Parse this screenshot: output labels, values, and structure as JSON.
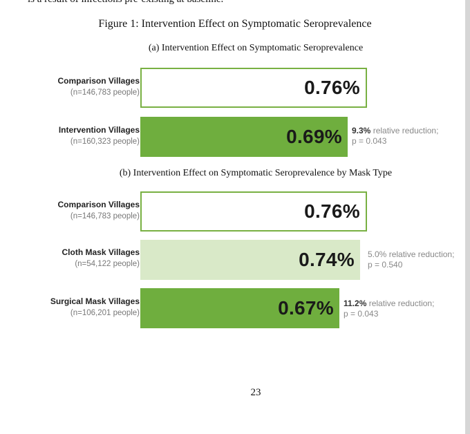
{
  "clipped_text": "is a result of infections pre-existing at baseline.",
  "figure_caption": "Figure 1: Intervention Effect on Symptomatic Seroprevalence",
  "panel_a": {
    "caption": "(a) Intervention Effect on Symptomatic Seroprevalence",
    "rows": [
      {
        "name": "Comparison Villages",
        "n": "(n=146,783 people)",
        "value_label": "0.76%",
        "value": 0.76
      },
      {
        "name": "Intervention Villages",
        "n": "(n=160,323 people)",
        "value_label": "0.69%",
        "value": 0.69,
        "reduction_pct": "9.3%",
        "reduction_text": "relative reduction;",
        "p_text": "p = 0.043"
      }
    ]
  },
  "panel_b": {
    "caption": "(b) Intervention Effect on Symptomatic Seroprevalence by Mask Type",
    "rows": [
      {
        "name": "Comparison Villages",
        "n": "(n=146,783 people)",
        "value_label": "0.76%",
        "value": 0.76
      },
      {
        "name": "Cloth Mask Villages",
        "n": "(n=54,122 people)",
        "value_label": "0.74%",
        "value": 0.74,
        "reduction_pct": "5.0%",
        "reduction_text": "relative reduction;",
        "p_text": "p = 0.540"
      },
      {
        "name": "Surgical Mask Villages",
        "n": "(n=106,201 people)",
        "value_label": "0.67%",
        "value": 0.67,
        "reduction_pct": "11.2%",
        "reduction_text": "relative reduction;",
        "p_text": "p = 0.043"
      }
    ]
  },
  "page_number": "23",
  "colors": {
    "outline": "#78b042",
    "solid": "#6fae3e",
    "light": "#d9e9c8"
  }
}
